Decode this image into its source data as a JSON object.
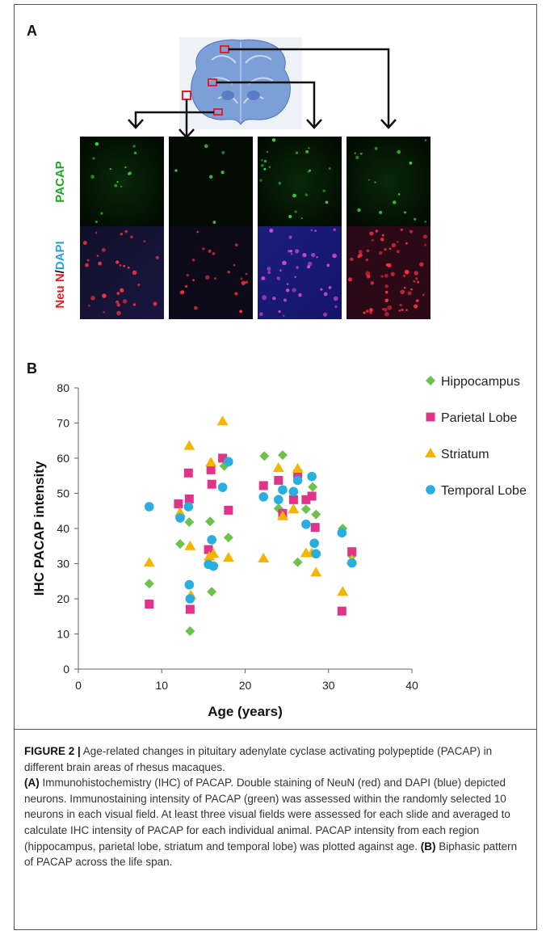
{
  "panel_a": {
    "label": "A",
    "ylabel_top": "PACAP",
    "ylabel_bottom_neun": "Neu N",
    "ylabel_bottom_slash": "/",
    "ylabel_bottom_dapi": "DAPI",
    "colors": {
      "pacap": "#1ea51e",
      "neun": "#e4202a",
      "dapi": "#2a9fd8"
    }
  },
  "panel_b": {
    "label": "B"
  },
  "chart_data": {
    "type": "scatter",
    "xlabel": "Age (years)",
    "ylabel": "IHC PACAP intensity",
    "xlim": [
      0,
      40
    ],
    "ylim": [
      0,
      80
    ],
    "xticks": [
      "0",
      "10",
      "20",
      "30",
      "40"
    ],
    "yticks": [
      "0",
      "10",
      "20",
      "30",
      "40",
      "50",
      "60",
      "70",
      "80"
    ],
    "grid": false,
    "legend_position": "top-right",
    "series": [
      {
        "name": "Hippocampus",
        "marker": "diamond",
        "color": "#6cc24a",
        "x": [
          8.5,
          12.2,
          13.3,
          13.4,
          15.8,
          16,
          17.5,
          18,
          22.3,
          24,
          24.5,
          26.3,
          27.3,
          28.1,
          28.5,
          31.7,
          32.8
        ],
        "y": [
          24.3,
          35.6,
          41.8,
          10.8,
          42,
          22,
          57.8,
          37.4,
          60.6,
          45.7,
          60.9,
          30.4,
          45.5,
          51.8,
          44,
          40,
          32.2
        ]
      },
      {
        "name": "Parietal Lobe",
        "marker": "square",
        "color": "#e0338a",
        "x": [
          8.5,
          12,
          13.2,
          13.3,
          13.4,
          15.6,
          15.9,
          16,
          17.3,
          18,
          22.2,
          24,
          24.5,
          25.8,
          26.3,
          27.3,
          28,
          28.4,
          31.6,
          32.8
        ],
        "y": [
          18.5,
          47,
          55.8,
          48.4,
          17,
          34,
          56.7,
          52.6,
          60,
          45.2,
          52.2,
          53.7,
          44.3,
          48.2,
          55.5,
          48.2,
          49.2,
          40.3,
          16.5,
          33.4
        ]
      },
      {
        "name": "Striatum",
        "marker": "triangle",
        "color": "#f5b400",
        "x": [
          8.5,
          12.2,
          13.3,
          13.4,
          13.5,
          15.7,
          15.9,
          16.2,
          17.3,
          18,
          22.2,
          24,
          24.5,
          25.8,
          26.3,
          27.3,
          28,
          28.5,
          31.7,
          32.8
        ],
        "y": [
          30.3,
          44.5,
          63.5,
          35,
          21,
          32,
          58.8,
          32.8,
          70.5,
          31.7,
          31.5,
          57.2,
          43.5,
          45.5,
          57,
          33,
          33,
          27.5,
          22,
          31
        ]
      },
      {
        "name": "Temporal Lobe",
        "marker": "circle",
        "color": "#29aee0",
        "x": [
          8.5,
          12.2,
          13.2,
          13.3,
          13.4,
          15.6,
          16,
          16.2,
          17.3,
          18,
          22.2,
          24,
          24.5,
          25.8,
          26.3,
          27.3,
          28,
          28.3,
          28.5,
          31.6,
          32.8
        ],
        "y": [
          46.2,
          43,
          46.2,
          24,
          20,
          29.8,
          36.8,
          29.3,
          51.7,
          59,
          49,
          48.2,
          51,
          50.5,
          53.7,
          41.2,
          54.8,
          35.8,
          32.8,
          38.8,
          30.2
        ]
      }
    ]
  },
  "caption": {
    "figure_label": "FIGURE 2 |",
    "title": " Age-related changes in pituitary adenylate cyclase activating polypeptide (PACAP) in different brain areas of rhesus macaques.",
    "a_label": "(A)",
    "a_text": " Immunohistochemistry (IHC) of PACAP. Double staining of NeuN (red) and DAPI (blue) depicted neurons. Immunostaining intensity of PACAP (green) was assessed within the randomly selected 10 neurons in each visual field. At least three visual fields were assessed for each slide and averaged to calculate IHC intensity of PACAP for each individual animal. PACAP intensity from each region (hippocampus, parietal lobe, striatum and temporal lobe) was plotted against age.",
    "b_label": "(B)",
    "b_text": " Biphasic pattern of PACAP across the life span."
  }
}
